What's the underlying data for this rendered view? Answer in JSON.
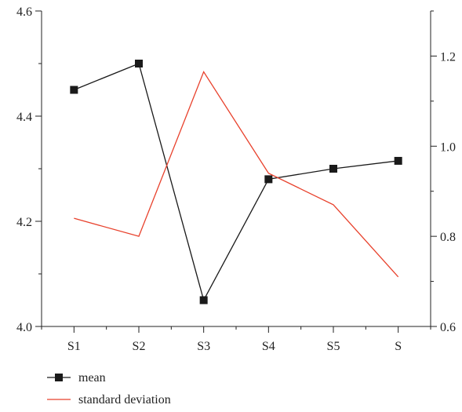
{
  "chart_data": {
    "type": "line",
    "title": "",
    "xlabel": "",
    "ylabel": "",
    "y2label": "",
    "categories": [
      "S1",
      "S2",
      "S3",
      "S4",
      "S5",
      "S"
    ],
    "ylim": [
      4.0,
      4.6
    ],
    "yticks": [
      "4.0",
      "4.2",
      "4.4",
      "4.6"
    ],
    "y2lim": [
      0.6,
      1.3
    ],
    "y2ticks": [
      "0.6",
      "0.8",
      "1.0",
      "1.2"
    ],
    "series": [
      {
        "name": "mean",
        "axis": "left",
        "color": "#1a1a1a",
        "marker": "square",
        "values": [
          4.45,
          4.5,
          4.05,
          4.28,
          4.3,
          4.315
        ]
      },
      {
        "name": "standard deviation",
        "axis": "right",
        "color": "#e8412c",
        "marker": "none",
        "values": [
          0.84,
          0.8,
          1.165,
          0.94,
          0.87,
          0.71
        ]
      }
    ],
    "legend": {
      "position": "bottom-left",
      "items": [
        {
          "label": "mean",
          "color": "#1a1a1a",
          "marker": "square"
        },
        {
          "label": "standard deviation",
          "color": "#e8412c",
          "marker": "none"
        }
      ]
    },
    "grid": false
  }
}
